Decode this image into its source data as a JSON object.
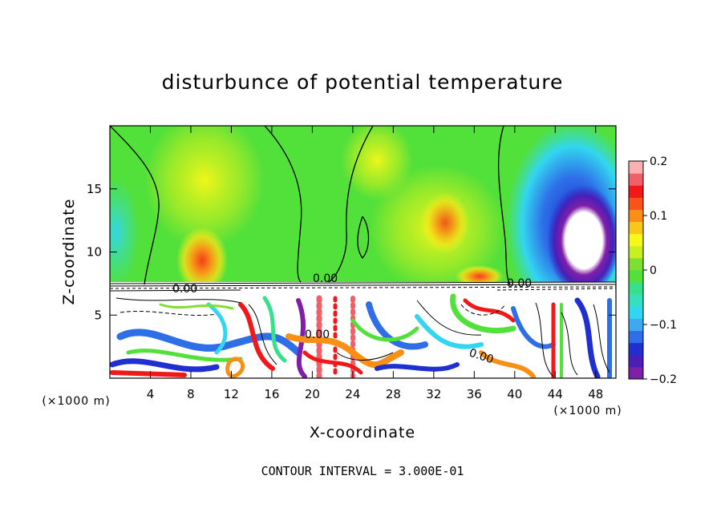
{
  "chart_data": {
    "type": "heatmap",
    "title": "disturbunce of potential temperature",
    "xlabel": "X-coordinate",
    "ylabel": "Z-coordinate",
    "x_unit": "(×1000 m)",
    "z_unit": "(×1000 m)",
    "footer": "CONTOUR INTERVAL = 3.000E-01",
    "xlim": [
      0,
      50
    ],
    "ylim": [
      0,
      20
    ],
    "x_ticks": [
      4,
      8,
      12,
      16,
      20,
      24,
      28,
      32,
      36,
      40,
      44,
      48
    ],
    "y_ticks": [
      5,
      10,
      15
    ],
    "colorbar": {
      "min": -0.2,
      "max": 0.2,
      "ticks": [
        0.2,
        0.1,
        0,
        -0.1,
        -0.2
      ],
      "tick_labels": [
        "0.2",
        "0.1",
        "0",
        "−0.1",
        "−0.2"
      ],
      "colors": [
        "#7f1fa8",
        "#4a1fb8",
        "#1f2fd0",
        "#2e6fe8",
        "#3fa8f0",
        "#33d6f0",
        "#35e0c0",
        "#39e08a",
        "#52e03a",
        "#7ce030",
        "#c8f020",
        "#f8f818",
        "#f8c818",
        "#f89018",
        "#f85418",
        "#f01818",
        "#f06068",
        "#f8b0b0"
      ]
    },
    "contour_labels": [
      "0.00",
      "0.00",
      "0.00",
      "0.00",
      "0.00",
      "0.00"
    ]
  }
}
